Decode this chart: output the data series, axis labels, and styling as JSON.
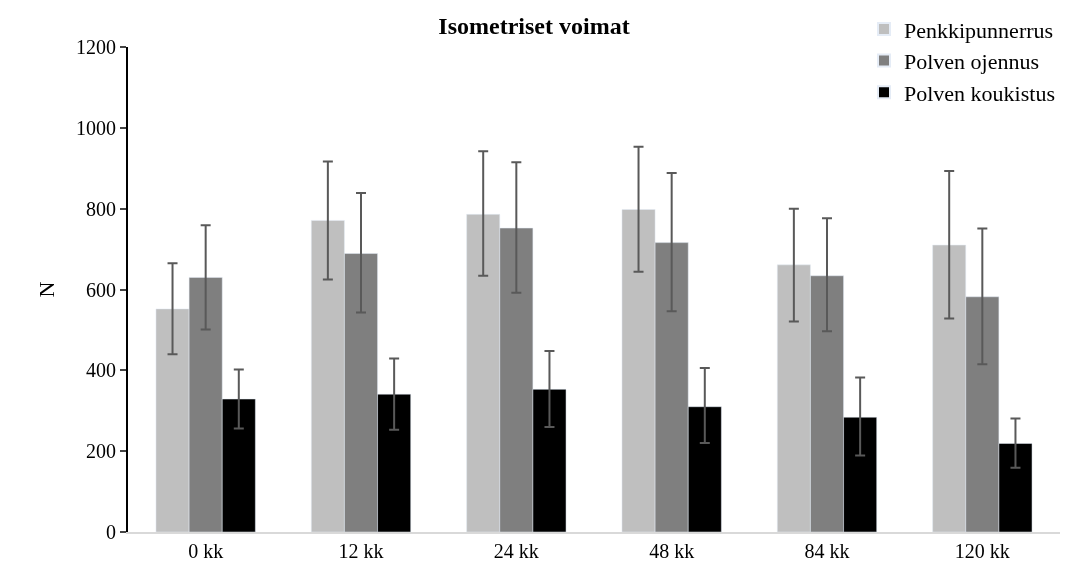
{
  "chart_data": {
    "type": "bar",
    "title": "Isometriset voimat",
    "ylabel": "N",
    "categories": [
      "0 kk",
      "12 kk",
      "24 kk",
      "48 kk",
      "84 kk",
      "120 kk"
    ],
    "series": [
      {
        "name": "Penkkipunnerrus",
        "color": "#bfbfbf",
        "values": [
          552,
          771,
          786,
          798,
          661,
          710
        ],
        "errors": [
          [
            440,
            665
          ],
          [
            625,
            917
          ],
          [
            634,
            942
          ],
          [
            644,
            953
          ],
          [
            521,
            800
          ],
          [
            528,
            893
          ]
        ]
      },
      {
        "name": "Polven ojennus",
        "color": "#7f7f7f",
        "values": [
          630,
          689,
          752,
          716,
          634,
          582
        ],
        "errors": [
          [
            501,
            759
          ],
          [
            543,
            839
          ],
          [
            592,
            915
          ],
          [
            546,
            888
          ],
          [
            497,
            776
          ],
          [
            415,
            751
          ]
        ]
      },
      {
        "name": "Polven koukistus",
        "color": "#000000",
        "values": [
          329,
          341,
          353,
          310,
          284,
          219
        ],
        "errors": [
          [
            256,
            402
          ],
          [
            253,
            429
          ],
          [
            260,
            448
          ],
          [
            220,
            406
          ],
          [
            189,
            382
          ],
          [
            159,
            281
          ]
        ]
      }
    ],
    "ylim": [
      0,
      1200
    ],
    "yticks": [
      0,
      200,
      400,
      600,
      800,
      1000,
      1200
    ],
    "legend": "top right"
  }
}
